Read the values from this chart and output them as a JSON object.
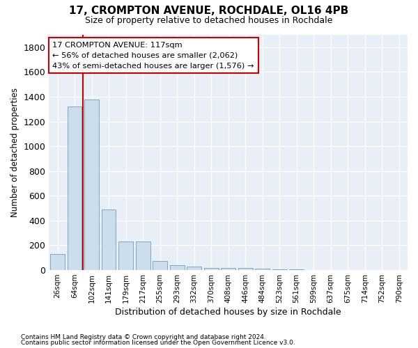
{
  "title": "17, CROMPTON AVENUE, ROCHDALE, OL16 4PB",
  "subtitle": "Size of property relative to detached houses in Rochdale",
  "xlabel": "Distribution of detached houses by size in Rochdale",
  "ylabel": "Number of detached properties",
  "bar_color": "#ccdded",
  "bar_edge_color": "#7aaac8",
  "vline_color": "#cc0000",
  "vline_x": 1.5,
  "annotation_line1": "17 CROMPTON AVENUE: 117sqm",
  "annotation_line2": "← 56% of detached houses are smaller (2,062)",
  "annotation_line3": "43% of semi-detached houses are larger (1,576) →",
  "categories": [
    "26sqm",
    "64sqm",
    "102sqm",
    "141sqm",
    "179sqm",
    "217sqm",
    "255sqm",
    "293sqm",
    "332sqm",
    "370sqm",
    "408sqm",
    "446sqm",
    "484sqm",
    "523sqm",
    "561sqm",
    "599sqm",
    "637sqm",
    "675sqm",
    "714sqm",
    "752sqm",
    "790sqm"
  ],
  "values": [
    130,
    1320,
    1380,
    490,
    230,
    230,
    75,
    40,
    28,
    20,
    18,
    15,
    12,
    8,
    5,
    3,
    2,
    2,
    1,
    1,
    1
  ],
  "ylim": [
    0,
    1900
  ],
  "yticks": [
    0,
    200,
    400,
    600,
    800,
    1000,
    1200,
    1400,
    1600,
    1800
  ],
  "footer1": "Contains HM Land Registry data © Crown copyright and database right 2024.",
  "footer2": "Contains public sector information licensed under the Open Government Licence v3.0.",
  "background_color": "#ffffff",
  "plot_bg_color": "#e8eff6",
  "grid_color": "#ffffff"
}
